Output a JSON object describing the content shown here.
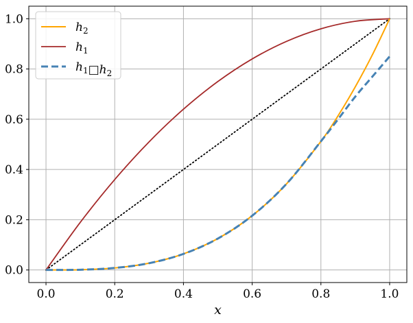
{
  "chart_data": {
    "type": "line",
    "title": "",
    "xlabel": "x",
    "ylabel": "",
    "xlim": [
      -0.05,
      1.05
    ],
    "ylim": [
      -0.05,
      1.05
    ],
    "grid": true,
    "legend_position": "top-left",
    "x_ticks": [
      0.0,
      0.2,
      0.4,
      0.6,
      0.8,
      1.0
    ],
    "x_tick_labels": [
      "0.0",
      "0.2",
      "0.4",
      "0.6",
      "0.8",
      "1.0"
    ],
    "y_ticks": [
      0.0,
      0.2,
      0.4,
      0.6,
      0.8,
      1.0
    ],
    "y_tick_labels": [
      "0.0",
      "0.2",
      "0.4",
      "0.6",
      "0.8",
      "1.0"
    ],
    "series": [
      {
        "name": "h2",
        "label_main": "h",
        "label_sub": "2",
        "color": "#FFA500",
        "style": "solid",
        "x": [
          0.0,
          0.1,
          0.2,
          0.3,
          0.4,
          0.5,
          0.6,
          0.7,
          0.8,
          0.85,
          0.9,
          0.95,
          1.0
        ],
        "y": [
          0.0,
          0.001,
          0.008,
          0.027,
          0.064,
          0.125,
          0.216,
          0.343,
          0.512,
          0.614,
          0.729,
          0.857,
          1.0
        ]
      },
      {
        "name": "h1",
        "label_main": "h",
        "label_sub": "1",
        "color": "#A52A2A",
        "style": "solid",
        "x": [
          0.0,
          0.1,
          0.2,
          0.3,
          0.4,
          0.5,
          0.6,
          0.7,
          0.8,
          0.9,
          1.0
        ],
        "y": [
          0.0,
          0.19,
          0.36,
          0.51,
          0.64,
          0.75,
          0.84,
          0.91,
          0.96,
          0.99,
          1.0
        ]
      },
      {
        "name": "h1□h2",
        "label_main": "h",
        "label_sub": "1",
        "label_op": "□",
        "label_main2": "h",
        "label_sub2": "2",
        "color": "#4682B4",
        "style": "dashed",
        "x": [
          0.0,
          0.1,
          0.2,
          0.3,
          0.4,
          0.5,
          0.6,
          0.7,
          0.8,
          0.85,
          0.9,
          0.95,
          1.0
        ],
        "y": [
          0.0,
          0.001,
          0.008,
          0.027,
          0.064,
          0.125,
          0.216,
          0.343,
          0.512,
          0.6,
          0.69,
          0.77,
          0.85
        ]
      },
      {
        "name": "identity",
        "color": "#000000",
        "style": "dotted",
        "x": [
          0.0,
          1.0
        ],
        "y": [
          0.0,
          1.0
        ]
      }
    ]
  }
}
